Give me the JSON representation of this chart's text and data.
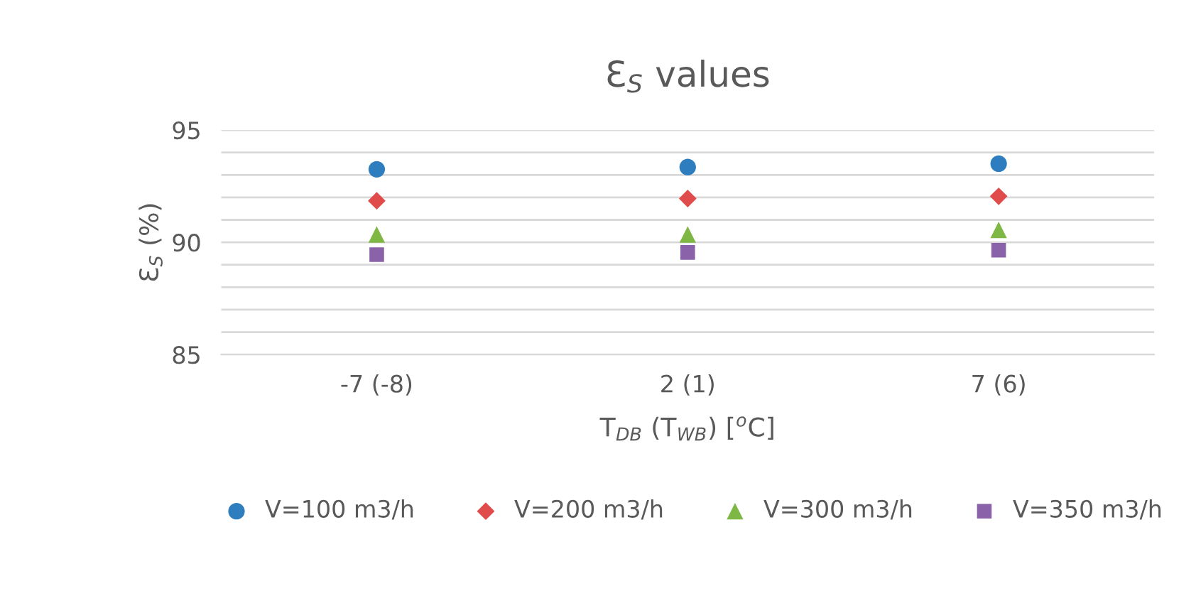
{
  "chart_data": {
    "type": "scatter",
    "title": "Ɛ$_{S}$ values",
    "xlabel": "T$_{DB}$ (T$_{WB}$) [$^{o}$C]",
    "ylabel": "Ɛ$_{S}$ (%)",
    "categories": [
      "-7 (-8)",
      "2 (1)",
      "7 (6)"
    ],
    "series": [
      {
        "name": "V=100 m3/h",
        "color": "#2e7ebf",
        "marker": "circle",
        "values": [
          93.25,
          93.35,
          93.5
        ]
      },
      {
        "name": "V=200 m3/h",
        "color": "#e04b4b",
        "marker": "diamond",
        "values": [
          91.85,
          91.95,
          92.05
        ]
      },
      {
        "name": "V=300 m3/h",
        "color": "#7fb744",
        "marker": "triangle",
        "values": [
          90.35,
          90.35,
          90.55
        ]
      },
      {
        "name": "V=350 m3/h",
        "color": "#8a62aa",
        "marker": "square",
        "values": [
          89.45,
          89.55,
          89.65
        ]
      }
    ],
    "ylim": [
      85,
      95
    ],
    "yticks": [
      85,
      {
        "value": 86,
        "label": null
      },
      {
        "value": 87,
        "label": null
      },
      {
        "value": 88,
        "label": null
      },
      {
        "value": 89,
        "label": null
      },
      90,
      {
        "value": 91,
        "label": null
      },
      {
        "value": 92,
        "label": null
      },
      {
        "value": 93,
        "label": null
      },
      {
        "value": 94,
        "label": null
      },
      95
    ],
    "grid": "y",
    "legend": "bottom"
  }
}
